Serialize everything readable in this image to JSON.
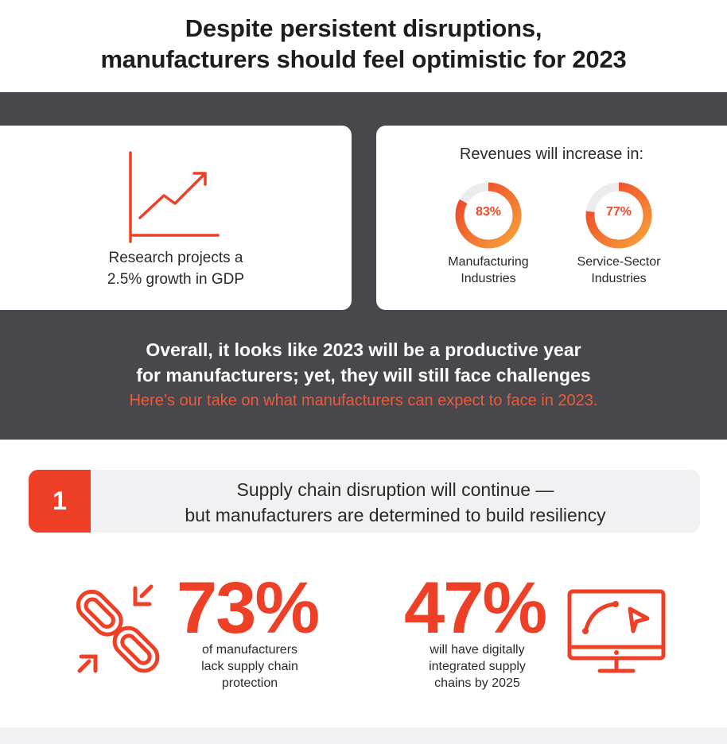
{
  "header": {
    "title_line1": "Despite persistent disruptions,",
    "title_line2": "manufacturers should feel optimistic for 2023"
  },
  "gdp_card": {
    "icon": "growth-chart-icon",
    "text_line1": "Research projects a",
    "text_line2": "2.5% growth in GDP"
  },
  "revenue_card": {
    "title": "Revenues will increase in:",
    "donuts": [
      {
        "percent_label": "83%",
        "value": 83,
        "caption_line1": "Manufacturing",
        "caption_line2": "Industries"
      },
      {
        "percent_label": "77%",
        "value": 77,
        "caption_line1": "Service-Sector",
        "caption_line2": "Industries"
      }
    ]
  },
  "summary": {
    "line1": "Overall, it looks like 2023 will be a productive year",
    "line2": "for manufacturers; yet, they will still face challenges",
    "sub": "Here’s our take on what manufacturers can expect to face in 2023."
  },
  "section1": {
    "number": "1",
    "title_line1": "Supply chain disruption will continue —",
    "title_line2": "but manufacturers are determined to build resiliency",
    "stats": [
      {
        "value": "73%",
        "icon": "broken-chain-icon",
        "caption_line1": "of manufacturers",
        "caption_line2": "lack supply chain",
        "caption_line3": "protection"
      },
      {
        "value": "47%",
        "icon": "monitor-cursor-icon",
        "caption_line1": "will have digitally",
        "caption_line2": "integrated supply",
        "caption_line3": "chains by 2025"
      }
    ]
  },
  "colors": {
    "accent": "#ee4027",
    "dark_band": "#48474b",
    "panel_grey": "#f1f0f3",
    "gradient_start": "#f7a23a",
    "gradient_end": "#ee3e27"
  }
}
